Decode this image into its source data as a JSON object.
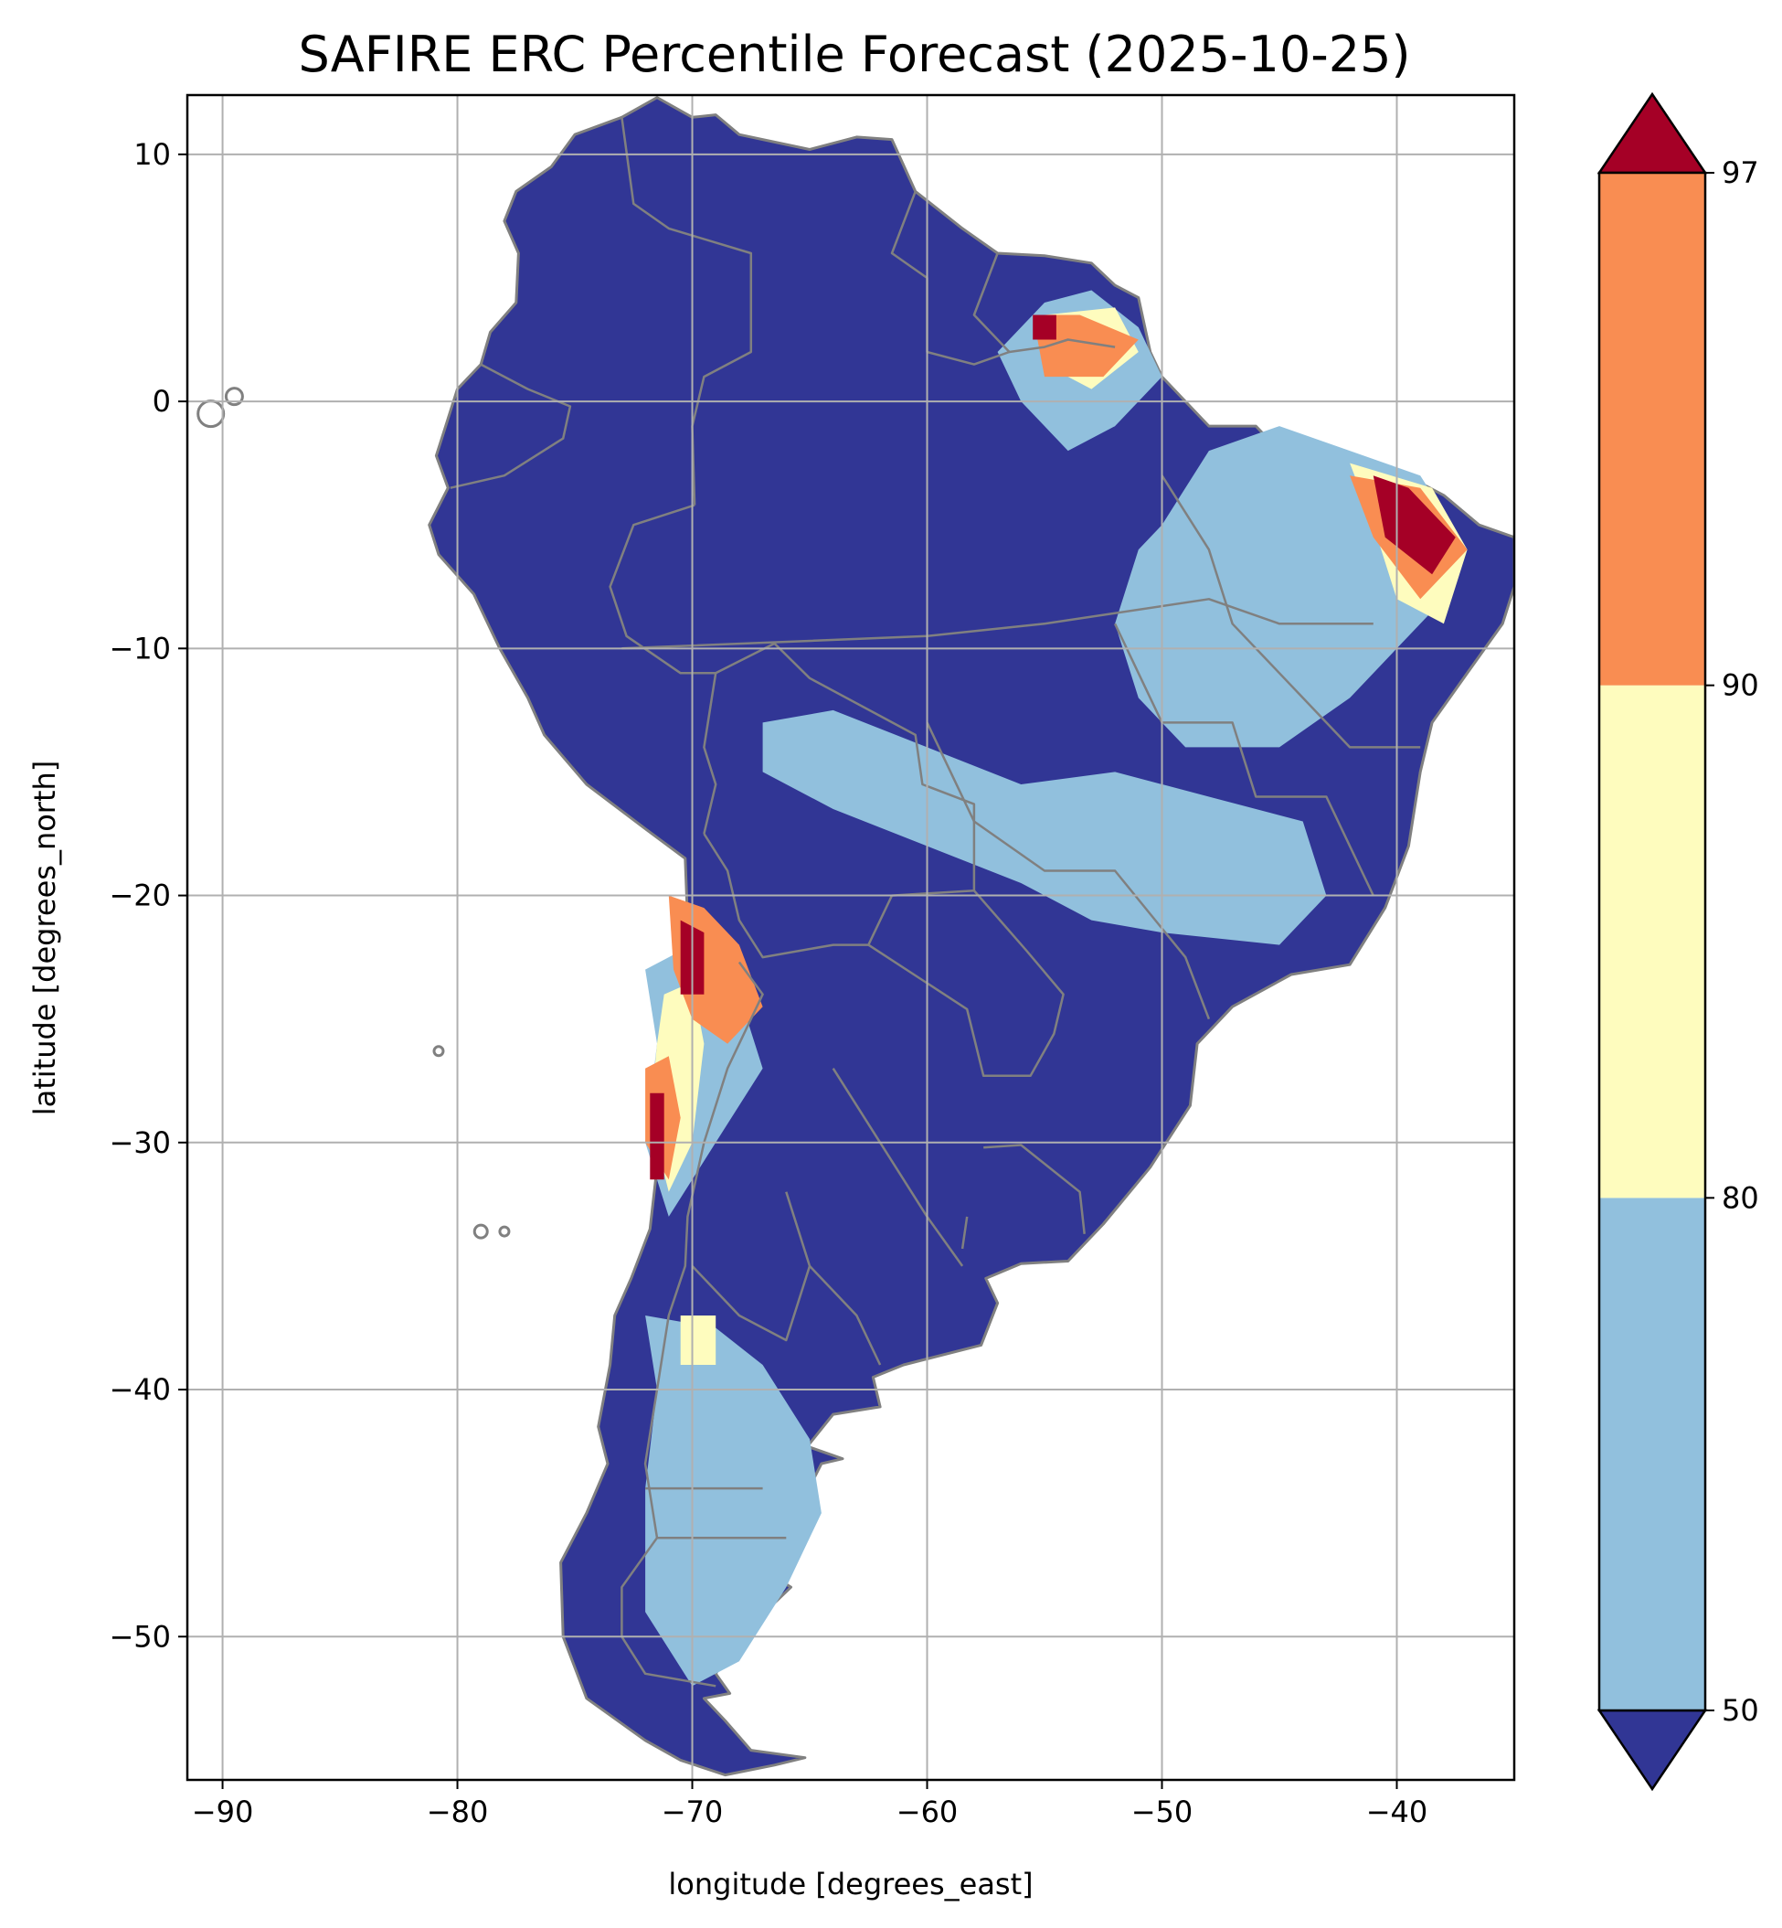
{
  "title": "SAFIRE ERC Percentile Forecast (2025-10-25)",
  "xlabel": "longitude [degrees_east]",
  "ylabel": "latitude [degrees_north]",
  "map": {
    "xlim": [
      -91.5,
      -35
    ],
    "ylim": [
      -55.8,
      12.4
    ],
    "grid": true,
    "land_fill": "#313695",
    "border_color": "#808080",
    "grid_color": "#b0b0b0"
  },
  "chart_data": {
    "type": "heatmap",
    "title": "SAFIRE ERC Percentile Forecast (2025-10-25)",
    "xlabel": "longitude [degrees_east]",
    "ylabel": "latitude [degrees_north]",
    "xlim": [
      -91.5,
      -35
    ],
    "ylim": [
      -55.8,
      12.4
    ],
    "xticks": [
      {
        "value": -90,
        "label": "−90"
      },
      {
        "value": -80,
        "label": "−80"
      },
      {
        "value": -70,
        "label": "−70"
      },
      {
        "value": -60,
        "label": "−60"
      },
      {
        "value": -50,
        "label": "−50"
      },
      {
        "value": -40,
        "label": "−40"
      }
    ],
    "yticks": [
      {
        "value": 10,
        "label": "10"
      },
      {
        "value": 0,
        "label": "0"
      },
      {
        "value": -10,
        "label": "−10"
      },
      {
        "value": -20,
        "label": "−20"
      },
      {
        "value": -30,
        "label": "−30"
      },
      {
        "value": -40,
        "label": "−40"
      },
      {
        "value": -50,
        "label": "−50"
      }
    ],
    "grid": true,
    "colorbar": {
      "extend": "both",
      "ticks": [
        {
          "value": 50,
          "label": "50"
        },
        {
          "value": 80,
          "label": "80"
        },
        {
          "value": 90,
          "label": "90"
        },
        {
          "value": 97,
          "label": "97"
        }
      ],
      "classes": [
        {
          "range": "<50",
          "color": "#313695"
        },
        {
          "range": "50-80",
          "color": "#91c0dd"
        },
        {
          "range": "80-90",
          "color": "#fefcbe"
        },
        {
          "range": "90-97",
          "color": "#f98d52"
        },
        {
          "range": ">97",
          "color": "#a50026"
        }
      ]
    },
    "regions": [
      {
        "level": "50-80",
        "color": "#91c0dd",
        "lonlat": [
          [
            -50,
            -5
          ],
          [
            -48,
            -2
          ],
          [
            -45,
            -1
          ],
          [
            -42,
            -2
          ],
          [
            -39,
            -3
          ],
          [
            -37,
            -6
          ],
          [
            -38,
            -8
          ],
          [
            -40,
            -10
          ],
          [
            -42,
            -12
          ],
          [
            -45,
            -14
          ],
          [
            -49,
            -14
          ],
          [
            -51,
            -12
          ],
          [
            -52,
            -9
          ],
          [
            -51,
            -6
          ]
        ]
      },
      {
        "level": "50-80",
        "color": "#91c0dd",
        "lonlat": [
          [
            -55,
            4
          ],
          [
            -53,
            4.5
          ],
          [
            -51,
            3
          ],
          [
            -50,
            1
          ],
          [
            -52,
            -1
          ],
          [
            -54,
            -2
          ],
          [
            -56,
            0
          ],
          [
            -57,
            2
          ]
        ]
      },
      {
        "level": "50-80",
        "color": "#91c0dd",
        "lonlat": [
          [
            -67,
            -13
          ],
          [
            -64,
            -12.5
          ],
          [
            -60,
            -14
          ],
          [
            -56,
            -15.5
          ],
          [
            -52,
            -15
          ],
          [
            -48,
            -16
          ],
          [
            -44,
            -17
          ],
          [
            -43,
            -20
          ],
          [
            -45,
            -22
          ],
          [
            -50,
            -21.5
          ],
          [
            -53,
            -21
          ],
          [
            -56,
            -19.5
          ],
          [
            -60,
            -18
          ],
          [
            -64,
            -16.5
          ],
          [
            -67,
            -15
          ]
        ]
      },
      {
        "level": "50-80",
        "color": "#91c0dd",
        "lonlat": [
          [
            -72,
            -37
          ],
          [
            -69,
            -37.5
          ],
          [
            -67,
            -39
          ],
          [
            -65,
            -42
          ],
          [
            -64.5,
            -45
          ],
          [
            -66,
            -48
          ],
          [
            -68,
            -51
          ],
          [
            -70,
            -52
          ],
          [
            -72,
            -49
          ],
          [
            -72,
            -44
          ],
          [
            -71.5,
            -40
          ]
        ]
      },
      {
        "level": "50-80",
        "color": "#91c0dd",
        "lonlat": [
          [
            -72,
            -23
          ],
          [
            -70,
            -22
          ],
          [
            -68,
            -24
          ],
          [
            -67,
            -27
          ],
          [
            -69,
            -30
          ],
          [
            -71,
            -33
          ],
          [
            -72,
            -30
          ],
          [
            -71.5,
            -26
          ]
        ]
      },
      {
        "level": "80-90",
        "color": "#fefcbe",
        "lonlat": [
          [
            -42,
            -2.5
          ],
          [
            -38.5,
            -3.5
          ],
          [
            -37,
            -6
          ],
          [
            -38,
            -9
          ],
          [
            -40,
            -8
          ],
          [
            -41,
            -5
          ]
        ]
      },
      {
        "level": "80-90",
        "color": "#fefcbe",
        "lonlat": [
          [
            -55,
            3.5
          ],
          [
            -52,
            3.8
          ],
          [
            -51,
            2
          ],
          [
            -53,
            0.5
          ],
          [
            -55,
            1.5
          ]
        ]
      },
      {
        "level": "80-90",
        "color": "#fefcbe",
        "lonlat": [
          [
            -71.2,
            -24
          ],
          [
            -70,
            -23.5
          ],
          [
            -69.5,
            -26
          ],
          [
            -70,
            -30
          ],
          [
            -71,
            -32
          ],
          [
            -71.8,
            -29
          ],
          [
            -71.5,
            -26
          ]
        ]
      },
      {
        "level": "80-90",
        "color": "#fefcbe",
        "lonlat": [
          [
            -70.5,
            -37
          ],
          [
            -69,
            -37
          ],
          [
            -69,
            -39
          ],
          [
            -70.5,
            -39
          ]
        ]
      },
      {
        "level": "90-97",
        "color": "#f98d52",
        "lonlat": [
          [
            -42,
            -3
          ],
          [
            -39,
            -3.5
          ],
          [
            -37,
            -6
          ],
          [
            -39,
            -8
          ],
          [
            -41,
            -5.5
          ]
        ]
      },
      {
        "level": "90-97",
        "color": "#f98d52",
        "lonlat": [
          [
            -55.5,
            3.5
          ],
          [
            -53.5,
            3.5
          ],
          [
            -51,
            2.5
          ],
          [
            -52.5,
            1
          ],
          [
            -55,
            1
          ]
        ]
      },
      {
        "level": "90-97",
        "color": "#f98d52",
        "lonlat": [
          [
            -71,
            -20
          ],
          [
            -69.5,
            -20.5
          ],
          [
            -68,
            -22
          ],
          [
            -67,
            -24.5
          ],
          [
            -68.5,
            -26
          ],
          [
            -70,
            -25
          ],
          [
            -70.8,
            -23
          ]
        ]
      },
      {
        "level": "90-97",
        "color": "#f98d52",
        "lonlat": [
          [
            -72,
            -27
          ],
          [
            -71,
            -26.5
          ],
          [
            -70.5,
            -29
          ],
          [
            -71,
            -31.5
          ],
          [
            -72,
            -30
          ]
        ]
      },
      {
        "level": ">97",
        "color": "#a50026",
        "lonlat": [
          [
            -41,
            -3
          ],
          [
            -39.5,
            -3.5
          ],
          [
            -37.5,
            -5.5
          ],
          [
            -38.5,
            -7
          ],
          [
            -40.5,
            -5.5
          ]
        ]
      },
      {
        "level": ">97",
        "color": "#a50026",
        "lonlat": [
          [
            -55.5,
            3.5
          ],
          [
            -54.5,
            3.5
          ],
          [
            -54.5,
            2.5
          ],
          [
            -55.5,
            2.5
          ]
        ]
      },
      {
        "level": ">97",
        "color": "#a50026",
        "lonlat": [
          [
            -70.5,
            -21
          ],
          [
            -69.5,
            -21.5
          ],
          [
            -69.5,
            -24
          ],
          [
            -70.5,
            -24
          ]
        ]
      },
      {
        "level": ">97",
        "color": "#a50026",
        "lonlat": [
          [
            -71.8,
            -28
          ],
          [
            -71.2,
            -28
          ],
          [
            -71.2,
            -31.5
          ],
          [
            -71.8,
            -31.5
          ]
        ]
      }
    ]
  }
}
